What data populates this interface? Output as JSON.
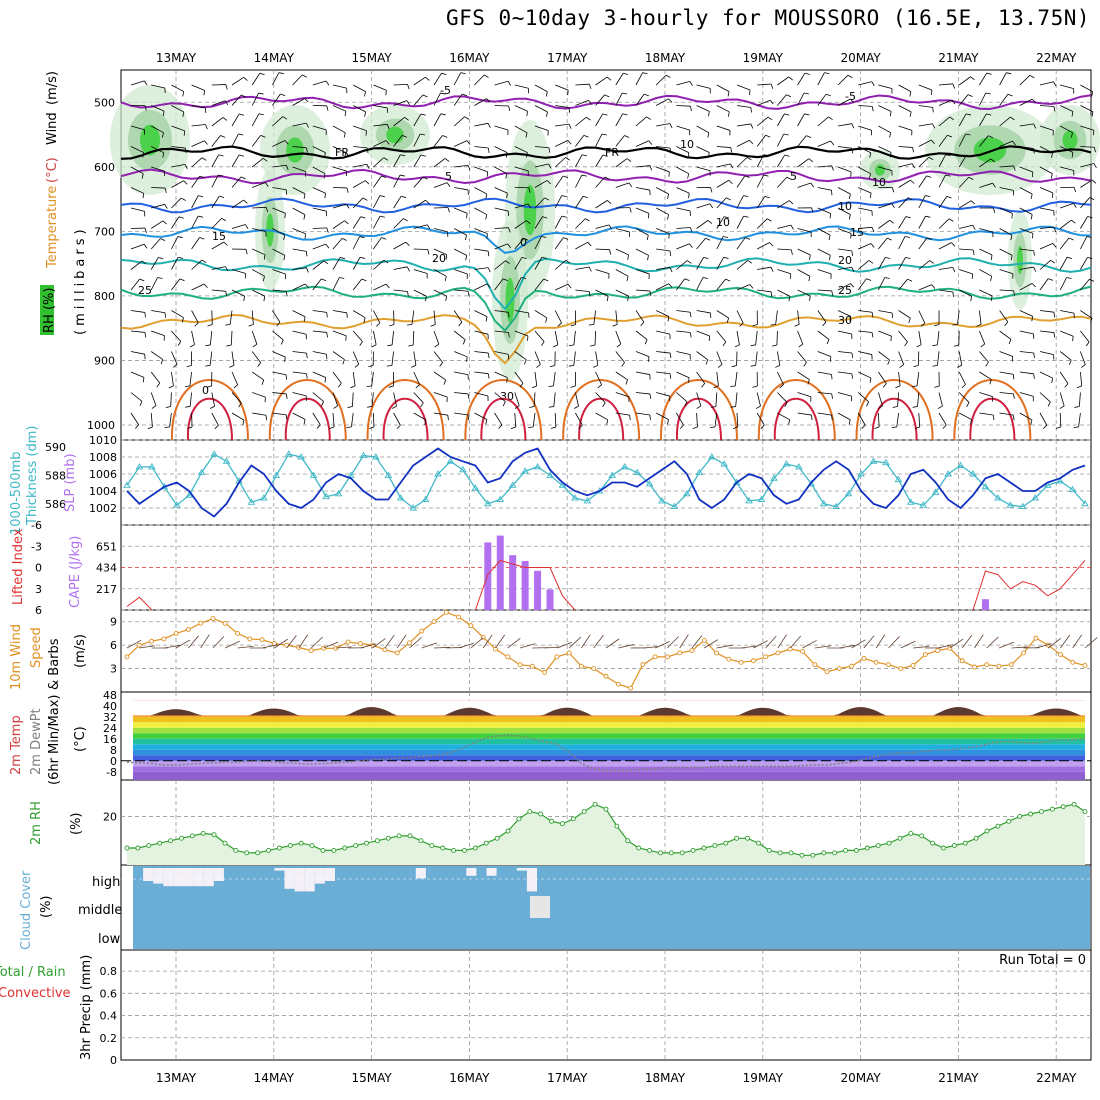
{
  "title": "GFS 0~10day 3-hourly for MOUSSORO (16.5E, 13.75N)",
  "dates": [
    "13MAY",
    "14MAY",
    "15MAY",
    "16MAY",
    "17MAY",
    "18MAY",
    "19MAY",
    "20MAY",
    "21MAY",
    "22MAY"
  ],
  "colors": {
    "wind": "#000000",
    "temp": "#d04040",
    "rh": "#30c030",
    "thick": "#40b8c8",
    "slp": "#1030c0",
    "lifted": "#e03030",
    "cape": "#b070f0",
    "wind10": "#e09020",
    "dewpt": "#808080",
    "rh2m": "#30a030",
    "cloud": "#6aaed6",
    "precip": "#30a030",
    "convective": "#e03030"
  },
  "chart_data": [
    {
      "type": "contour",
      "panel": "upper-air",
      "labels": {
        "wind": "Wind",
        "wind_unit": "(m/s)",
        "temp": "Temperature",
        "temp_unit": "(°C)",
        "rh": "RH (%)",
        "mb": "(millibars)"
      },
      "y_ticks": [
        "500",
        "600",
        "700",
        "800",
        "900",
        "1000"
      ],
      "ylim": [
        1000,
        450
      ],
      "contour_labels": [
        "-5",
        "-5",
        "FR",
        "FR",
        "5",
        "5",
        "10",
        "15",
        "15",
        "20",
        "20",
        "25",
        "25",
        "30",
        "30",
        "10",
        "10",
        "10",
        "0",
        "0"
      ],
      "isotherms": [
        {
          "name": "-5",
          "pressure": 500
        },
        {
          "name": "FR",
          "pressure": 578
        },
        {
          "name": "5",
          "pressure": 615
        },
        {
          "name": "10",
          "pressure": 660
        },
        {
          "name": "15",
          "pressure": 703
        },
        {
          "name": "20",
          "pressure": 752
        },
        {
          "name": "25",
          "pressure": 795
        },
        {
          "name": "30",
          "pressure": 840
        }
      ]
    },
    {
      "type": "line",
      "panel": "thickness-slp",
      "labels": {
        "thick": "1000-500mb",
        "thick2": "Thickness (dm)",
        "slp": "SLP (mb)"
      },
      "thick_ticks": [
        "590",
        "588",
        "586"
      ],
      "slp_ticks": [
        "1010",
        "1008",
        "1006",
        "1004",
        "1002"
      ],
      "ylim_thickness": [
        584.5,
        590.5
      ],
      "ylim_slp": [
        1000,
        1010
      ],
      "series": [
        {
          "name": "1000-500mb Thickness (dm)",
          "values": [
            587.3,
            588.6,
            588.6,
            587.2,
            585.9,
            586.6,
            588.2,
            589.5,
            589.0,
            587.6,
            586.1,
            586.4,
            588.0,
            589.5,
            589.3,
            588.0,
            586.5,
            586.7,
            588.0,
            589.4,
            589.3,
            588.0,
            586.4,
            585.7,
            586.3,
            588.1,
            589.0,
            588.4,
            587.1,
            586.0,
            586.3,
            587.3,
            588.3,
            588.6,
            588.0,
            587.3,
            586.4,
            586.2,
            586.9,
            588.0,
            588.6,
            588.2,
            587.4,
            586.2,
            585.8,
            586.7,
            588.2,
            589.3,
            588.8,
            587.5,
            586.2,
            586.3,
            587.8,
            588.8,
            588.6,
            587.4,
            586.0,
            585.8,
            586.7,
            588.1,
            589.0,
            588.9,
            587.7,
            586.1,
            585.9,
            586.8,
            588.1,
            588.7,
            588.1,
            587.2,
            586.4,
            585.9,
            585.8,
            586.4,
            587.3,
            587.6,
            587.0,
            586.0
          ]
        },
        {
          "name": "SLP (mb)",
          "values": [
            1004.0,
            1002.5,
            1003.5,
            1004.5,
            1005.0,
            1004.0,
            1002.0,
            1001.0,
            1002.5,
            1005.0,
            1007.0,
            1006.0,
            1004.0,
            1002.5,
            1002.0,
            1003.0,
            1005.0,
            1006.0,
            1005.5,
            1004.0,
            1003.0,
            1003.0,
            1005.0,
            1007.0,
            1008.0,
            1009.0,
            1008.0,
            1007.5,
            1007.0,
            1005.0,
            1005.5,
            1007.5,
            1008.5,
            1009.0,
            1006.5,
            1005.0,
            1004.0,
            1003.5,
            1004.0,
            1005.0,
            1005.0,
            1004.5,
            1005.5,
            1006.5,
            1007.5,
            1006.0,
            1003.0,
            1002.0,
            1003.0,
            1005.0,
            1006.0,
            1005.5,
            1003.5,
            1002.5,
            1003.0,
            1005.0,
            1006.5,
            1007.5,
            1006.5,
            1004.0,
            1002.5,
            1002.0,
            1003.5,
            1006.0,
            1006.5,
            1005.0,
            1003.0,
            1002.0,
            1003.5,
            1005.5,
            1006.0,
            1005.0,
            1004.0,
            1004.0,
            1005.0,
            1005.5,
            1006.5,
            1007.0
          ]
        }
      ]
    },
    {
      "type": "bar",
      "panel": "lifted-cape",
      "labels": {
        "lifted": "Lifted Index",
        "cape": "CAPE (J/kg)"
      },
      "li_ticks": [
        "-6",
        "-3",
        "0",
        "3",
        "6"
      ],
      "cape_ticks": [
        "651",
        "434",
        "217"
      ],
      "ylim_lifted": [
        6,
        -6
      ],
      "ylim_cape": [
        0,
        868
      ],
      "series": [
        {
          "name": "CAPE (J/kg)",
          "points": [
            [
              29,
              690
            ],
            [
              30,
              760
            ],
            [
              31,
              560
            ],
            [
              32,
              500
            ],
            [
              33,
              400
            ],
            [
              34,
              210
            ]
          ]
        },
        {
          "name": "Lifted Index",
          "points": [
            [
              0,
              5.5
            ],
            [
              1,
              4.2
            ],
            [
              2,
              6
            ],
            [
              36,
              5
            ],
            [
              37,
              5.5
            ],
            [
              39,
              5.8
            ],
            [
              40,
              6
            ]
          ]
        }
      ]
    },
    {
      "type": "line",
      "panel": "wind10m",
      "labels": {
        "wind": "10m Wind",
        "speed": "Speed",
        "barbs": "& Barbs",
        "unit": "(m/s)"
      },
      "y_ticks": [
        "9",
        "6",
        "3"
      ],
      "ylim": [
        0,
        10.5
      ],
      "series": [
        {
          "name": "10m Wind Speed",
          "values": [
            4.5,
            6.0,
            6.5,
            6.8,
            7.5,
            8.0,
            8.8,
            9.4,
            8.8,
            7.5,
            6.8,
            6.7,
            6.2,
            6.0,
            5.7,
            5.3,
            5.6,
            5.6,
            6.4,
            6.2,
            6.0,
            5.4,
            5.0,
            6.3,
            7.8,
            9.0,
            10.2,
            9.6,
            8.5,
            7.0,
            5.5,
            4.5,
            3.5,
            3.3,
            2.5,
            4.5,
            5.0,
            3.3,
            3.0,
            2.0,
            1.0,
            0.5,
            3.5,
            4.5,
            4.5,
            5.0,
            5.3,
            6.6,
            5.0,
            4.2,
            3.8,
            4.0,
            4.5,
            5.0,
            5.5,
            5.2,
            3.5,
            2.6,
            3.0,
            3.3,
            4.3,
            3.8,
            3.5,
            3.0,
            3.4,
            4.8,
            5.3,
            5.6,
            4.0,
            3.2,
            3.5,
            3.3,
            3.5,
            5.0,
            6.9,
            6.0,
            4.8,
            3.8,
            3.4
          ]
        }
      ]
    },
    {
      "type": "area",
      "panel": "temp2m",
      "labels": {
        "temp": "2m Temp",
        "dewpt": "2m DewPt",
        "minmax": "(6hr Min/Max)",
        "unit": "(°C)"
      },
      "y_ticks": [
        "48",
        "40",
        "32",
        "24",
        "16",
        "8",
        "0",
        "-8"
      ],
      "ylim": [
        -14,
        50
      ],
      "temp_daily_max": [
        37.5,
        38.0,
        39.0,
        38.5,
        38.5,
        38.5,
        38.5,
        39.0,
        39.0,
        38.0
      ],
      "temp_daily_min": [
        33.0,
        33.0,
        33.0,
        33.0,
        33.0,
        33.0,
        33.0,
        33.0,
        33.0,
        33.0
      ],
      "series": [
        {
          "name": "2m DewPt",
          "values": [
            -1,
            -1.5,
            -2,
            -3,
            -3,
            -2.5,
            -2,
            -1.5,
            -1,
            -1,
            -0.5,
            -0.5,
            -1,
            -1.5,
            -2,
            -2.5,
            -2,
            -1.5,
            -1,
            0,
            1,
            1,
            2,
            2,
            3,
            4,
            5,
            8,
            12,
            16,
            18,
            18.5,
            18,
            16,
            14,
            12,
            6,
            -2,
            -6,
            -7,
            -7,
            -7,
            -6,
            -6,
            -5,
            -5,
            -5,
            -5,
            -4,
            -4,
            -4,
            -4,
            -4,
            -4,
            -4,
            -3.5,
            -3,
            -3,
            -2,
            -1,
            1,
            3,
            5,
            6,
            6,
            7,
            8,
            8,
            9,
            10,
            12,
            14,
            14,
            13,
            13,
            14,
            15,
            15,
            16
          ]
        }
      ]
    },
    {
      "type": "area",
      "panel": "rh2m",
      "labels": {
        "rh": "2m RH",
        "unit": "(%)"
      },
      "y_ticks": [
        "20"
      ],
      "ylim": [
        0,
        35
      ],
      "series": [
        {
          "name": "2m RH",
          "values": [
            7,
            7,
            8,
            9,
            10,
            11,
            12,
            13,
            12.5,
            9,
            6,
            5,
            5,
            6,
            7,
            8,
            9,
            8,
            6,
            6,
            7,
            8,
            9,
            10,
            11,
            12,
            12,
            10,
            8,
            7,
            6,
            6,
            7,
            9,
            11,
            14,
            19,
            22,
            21,
            18,
            17,
            19,
            22,
            25,
            23,
            16,
            10,
            7,
            6,
            5,
            5,
            5,
            6,
            7,
            8,
            9,
            11,
            11,
            9,
            6,
            5,
            5,
            4,
            4,
            5,
            5,
            6,
            6,
            7,
            8,
            9,
            11,
            13,
            12,
            9,
            7,
            8,
            9,
            11,
            14,
            16,
            18,
            20,
            21,
            22,
            23,
            24,
            25,
            22
          ]
        }
      ]
    },
    {
      "type": "heatmap",
      "panel": "cloud",
      "labels": {
        "cloud": "Cloud Cover",
        "unit": "(%)",
        "levels": [
          "high",
          "middle",
          "low"
        ]
      },
      "high": [
        0,
        50,
        60,
        70,
        70,
        70,
        70,
        70,
        50,
        0,
        0,
        0,
        0,
        0,
        10,
        80,
        90,
        90,
        60,
        50,
        0,
        0,
        0,
        0,
        0,
        0,
        0,
        0,
        40,
        0,
        0,
        0,
        0,
        30,
        0,
        30,
        0,
        0,
        10,
        90,
        0,
        0,
        0,
        0,
        0,
        0,
        0,
        0,
        0,
        0,
        0,
        0,
        0,
        0,
        0,
        0,
        0,
        0,
        0,
        0,
        0,
        0,
        0,
        0,
        0,
        0,
        0,
        0,
        0,
        0,
        0,
        0,
        0,
        0,
        0,
        0,
        0,
        0,
        0,
        0,
        0,
        0,
        0,
        0,
        0,
        0,
        0,
        0,
        0
      ],
      "middle": [
        0,
        0,
        0,
        0,
        0,
        0,
        0,
        0,
        0,
        0,
        0,
        0,
        0,
        0,
        0,
        0,
        0,
        0,
        0,
        0,
        0,
        0,
        0,
        0,
        0,
        0,
        0,
        0,
        0,
        0,
        0,
        0,
        0,
        0,
        0,
        0,
        0,
        0,
        0,
        0,
        0,
        0,
        0,
        0,
        0,
        0,
        0,
        0,
        0,
        0,
        0,
        0,
        0,
        0,
        0,
        0,
        0,
        0,
        0,
        0,
        0,
        0,
        0,
        0,
        0,
        0,
        0,
        0,
        0,
        0,
        0,
        0,
        0,
        0,
        0,
        0,
        0,
        0,
        0,
        0,
        0,
        0,
        0,
        0,
        0,
        0,
        0,
        0,
        0
      ]
    },
    {
      "type": "bar",
      "panel": "precip",
      "labels": {
        "precip": "3hr Precip (mm)",
        "total": "Total / Rain",
        "convective": "Convective",
        "run_total": "Run Total = 0"
      },
      "y_ticks": [
        "0.8",
        "0.6",
        "0.4",
        "0.2",
        "0"
      ],
      "ylim": [
        0,
        0.9
      ],
      "series": []
    }
  ]
}
